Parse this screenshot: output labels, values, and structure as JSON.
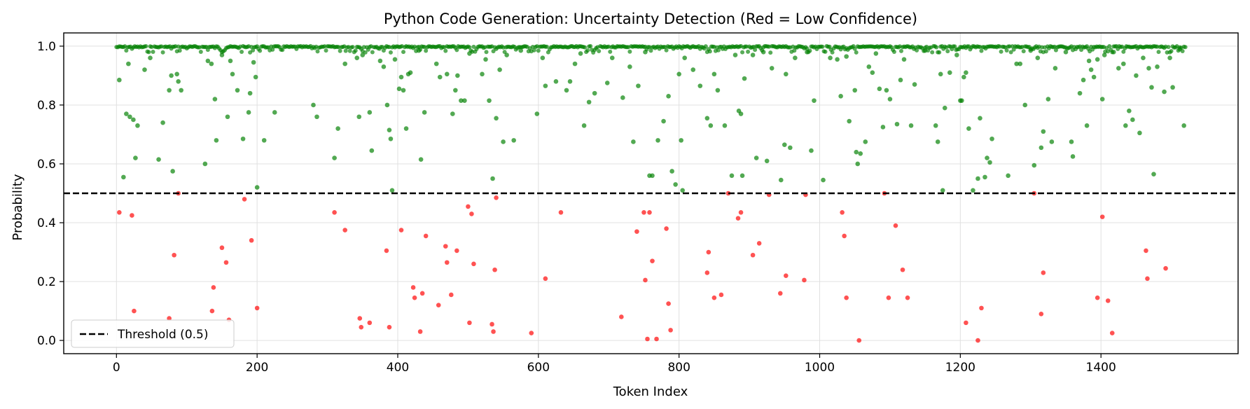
{
  "chart_data": {
    "type": "scatter",
    "title": "Python Code Generation: Uncertainty Detection (Red = Low Confidence)",
    "xlabel": "Token Index",
    "ylabel": "Probability",
    "xlim": [
      -75,
      1595
    ],
    "ylim": [
      -0.045,
      1.045
    ],
    "xticks": [
      0,
      200,
      400,
      600,
      800,
      1000,
      1200,
      1400
    ],
    "yticks": [
      0.0,
      0.2,
      0.4,
      0.6,
      0.8,
      1.0
    ],
    "grid": true,
    "threshold": {
      "value": 0.5,
      "label": "Threshold (0.5)",
      "style": "dashed",
      "color": "#000000"
    },
    "legend": {
      "placement": "lower-left",
      "entries": [
        "Threshold (0.5)"
      ]
    },
    "colors": {
      "high_confidence": "#008000",
      "low_confidence": "#ff0000"
    },
    "token_count": 1521,
    "series": [
      {
        "color": "#008000",
        "points": [
          [
            4,
            0.885
          ],
          [
            10,
            0.555
          ],
          [
            14,
            0.77
          ],
          [
            17,
            0.94
          ],
          [
            19,
            0.76
          ],
          [
            24,
            0.75
          ],
          [
            27,
            0.62
          ],
          [
            30,
            0.73
          ],
          [
            40,
            0.92
          ],
          [
            48,
            0.96
          ],
          [
            60,
            0.615
          ],
          [
            66,
            0.74
          ],
          [
            75,
            0.85
          ],
          [
            78,
            0.9
          ],
          [
            80,
            0.575
          ],
          [
            86,
            0.905
          ],
          [
            88,
            0.88
          ],
          [
            92,
            0.85
          ],
          [
            126,
            0.6
          ],
          [
            130,
            0.95
          ],
          [
            135,
            0.94
          ],
          [
            140,
            0.82
          ],
          [
            142,
            0.68
          ],
          [
            150,
            0.97
          ],
          [
            158,
            0.76
          ],
          [
            162,
            0.95
          ],
          [
            165,
            0.905
          ],
          [
            172,
            0.85
          ],
          [
            180,
            0.685
          ],
          [
            188,
            0.775
          ],
          [
            190,
            0.84
          ],
          [
            195,
            0.945
          ],
          [
            198,
            0.895
          ],
          [
            200,
            0.52
          ],
          [
            210,
            0.68
          ],
          [
            225,
            0.775
          ],
          [
            280,
            0.8
          ],
          [
            285,
            0.76
          ],
          [
            310,
            0.62
          ],
          [
            315,
            0.72
          ],
          [
            325,
            0.94
          ],
          [
            342,
            0.96
          ],
          [
            345,
            0.76
          ],
          [
            350,
            0.97
          ],
          [
            360,
            0.775
          ],
          [
            363,
            0.645
          ],
          [
            375,
            0.95
          ],
          [
            380,
            0.93
          ],
          [
            385,
            0.8
          ],
          [
            388,
            0.715
          ],
          [
            390,
            0.685
          ],
          [
            392,
            0.51
          ],
          [
            396,
            0.955
          ],
          [
            402,
            0.855
          ],
          [
            405,
            0.895
          ],
          [
            408,
            0.85
          ],
          [
            412,
            0.72
          ],
          [
            415,
            0.905
          ],
          [
            418,
            0.91
          ],
          [
            430,
            0.985
          ],
          [
            433,
            0.615
          ],
          [
            438,
            0.775
          ],
          [
            455,
            0.94
          ],
          [
            460,
            0.895
          ],
          [
            470,
            0.905
          ],
          [
            478,
            0.77
          ],
          [
            482,
            0.85
          ],
          [
            485,
            0.9
          ],
          [
            490,
            0.815
          ],
          [
            495,
            0.815
          ],
          [
            502,
            0.975
          ],
          [
            520,
            0.905
          ],
          [
            525,
            0.955
          ],
          [
            530,
            0.815
          ],
          [
            535,
            0.55
          ],
          [
            540,
            0.755
          ],
          [
            545,
            0.92
          ],
          [
            550,
            0.675
          ],
          [
            555,
            0.97
          ],
          [
            565,
            0.68
          ],
          [
            575,
            0.985
          ],
          [
            598,
            0.77
          ],
          [
            606,
            0.96
          ],
          [
            610,
            0.865
          ],
          [
            625,
            0.88
          ],
          [
            640,
            0.85
          ],
          [
            645,
            0.88
          ],
          [
            652,
            0.94
          ],
          [
            660,
            0.975
          ],
          [
            665,
            0.73
          ],
          [
            672,
            0.81
          ],
          [
            680,
            0.84
          ],
          [
            698,
            0.875
          ],
          [
            705,
            0.96
          ],
          [
            720,
            0.825
          ],
          [
            730,
            0.93
          ],
          [
            735,
            0.675
          ],
          [
            742,
            0.865
          ],
          [
            752,
            0.98
          ],
          [
            758,
            0.56
          ],
          [
            762,
            0.56
          ],
          [
            770,
            0.68
          ],
          [
            778,
            0.745
          ],
          [
            785,
            0.83
          ],
          [
            790,
            0.575
          ],
          [
            795,
            0.53
          ],
          [
            800,
            0.905
          ],
          [
            803,
            0.68
          ],
          [
            805,
            0.51
          ],
          [
            808,
            0.96
          ],
          [
            820,
            0.92
          ],
          [
            830,
            0.865
          ],
          [
            840,
            0.755
          ],
          [
            845,
            0.73
          ],
          [
            850,
            0.905
          ],
          [
            855,
            0.85
          ],
          [
            865,
            0.73
          ],
          [
            875,
            0.56
          ],
          [
            880,
            0.97
          ],
          [
            885,
            0.78
          ],
          [
            888,
            0.77
          ],
          [
            890,
            0.56
          ],
          [
            893,
            0.89
          ],
          [
            905,
            0.97
          ],
          [
            910,
            0.62
          ],
          [
            920,
            0.98
          ],
          [
            925,
            0.61
          ],
          [
            932,
            0.925
          ],
          [
            945,
            0.545
          ],
          [
            950,
            0.665
          ],
          [
            952,
            0.905
          ],
          [
            958,
            0.655
          ],
          [
            965,
            0.96
          ],
          [
            982,
            0.98
          ],
          [
            988,
            0.645
          ],
          [
            992,
            0.815
          ],
          [
            1005,
            0.545
          ],
          [
            1015,
            0.96
          ],
          [
            1025,
            0.955
          ],
          [
            1030,
            0.83
          ],
          [
            1038,
            0.965
          ],
          [
            1042,
            0.745
          ],
          [
            1050,
            0.85
          ],
          [
            1052,
            0.64
          ],
          [
            1054,
            0.6
          ],
          [
            1058,
            0.635
          ],
          [
            1065,
            0.675
          ],
          [
            1070,
            0.93
          ],
          [
            1075,
            0.91
          ],
          [
            1080,
            0.975
          ],
          [
            1085,
            0.855
          ],
          [
            1090,
            0.725
          ],
          [
            1095,
            0.85
          ],
          [
            1100,
            0.82
          ],
          [
            1110,
            0.735
          ],
          [
            1115,
            0.885
          ],
          [
            1120,
            0.955
          ],
          [
            1130,
            0.73
          ],
          [
            1135,
            0.87
          ],
          [
            1150,
            0.985
          ],
          [
            1165,
            0.73
          ],
          [
            1168,
            0.675
          ],
          [
            1172,
            0.905
          ],
          [
            1175,
            0.51
          ],
          [
            1178,
            0.79
          ],
          [
            1185,
            0.91
          ],
          [
            1195,
            0.97
          ],
          [
            1200,
            0.815
          ],
          [
            1202,
            0.815
          ],
          [
            1205,
            0.895
          ],
          [
            1208,
            0.91
          ],
          [
            1212,
            0.72
          ],
          [
            1218,
            0.51
          ],
          [
            1225,
            0.55
          ],
          [
            1228,
            0.755
          ],
          [
            1235,
            0.555
          ],
          [
            1238,
            0.62
          ],
          [
            1242,
            0.605
          ],
          [
            1245,
            0.685
          ],
          [
            1268,
            0.56
          ],
          [
            1280,
            0.94
          ],
          [
            1285,
            0.94
          ],
          [
            1292,
            0.8
          ],
          [
            1300,
            0.985
          ],
          [
            1305,
            0.595
          ],
          [
            1310,
            0.96
          ],
          [
            1315,
            0.655
          ],
          [
            1318,
            0.71
          ],
          [
            1325,
            0.82
          ],
          [
            1330,
            0.675
          ],
          [
            1335,
            0.925
          ],
          [
            1350,
            0.98
          ],
          [
            1358,
            0.675
          ],
          [
            1360,
            0.625
          ],
          [
            1370,
            0.84
          ],
          [
            1375,
            0.885
          ],
          [
            1380,
            0.73
          ],
          [
            1383,
            0.95
          ],
          [
            1386,
            0.92
          ],
          [
            1390,
            0.895
          ],
          [
            1395,
            0.955
          ],
          [
            1402,
            0.82
          ],
          [
            1405,
            0.97
          ],
          [
            1418,
            0.98
          ],
          [
            1425,
            0.925
          ],
          [
            1432,
            0.94
          ],
          [
            1435,
            0.73
          ],
          [
            1440,
            0.78
          ],
          [
            1445,
            0.75
          ],
          [
            1450,
            0.9
          ],
          [
            1455,
            0.705
          ],
          [
            1460,
            0.96
          ],
          [
            1468,
            0.925
          ],
          [
            1472,
            0.86
          ],
          [
            1475,
            0.565
          ],
          [
            1480,
            0.93
          ],
          [
            1490,
            0.845
          ],
          [
            1498,
            0.96
          ],
          [
            1502,
            0.86
          ],
          [
            1512,
            0.99
          ],
          [
            1518,
            0.73
          ]
        ]
      },
      {
        "color": "#ff0000",
        "points": [
          [
            4,
            0.435
          ],
          [
            22,
            0.425
          ],
          [
            25,
            0.1
          ],
          [
            75,
            0.075
          ],
          [
            82,
            0.29
          ],
          [
            88,
            0.5
          ],
          [
            136,
            0.1
          ],
          [
            138,
            0.18
          ],
          [
            150,
            0.315
          ],
          [
            156,
            0.265
          ],
          [
            160,
            0.07
          ],
          [
            182,
            0.48
          ],
          [
            192,
            0.34
          ],
          [
            200,
            0.11
          ],
          [
            310,
            0.435
          ],
          [
            325,
            0.375
          ],
          [
            346,
            0.075
          ],
          [
            348,
            0.045
          ],
          [
            360,
            0.06
          ],
          [
            384,
            0.305
          ],
          [
            388,
            0.045
          ],
          [
            405,
            0.375
          ],
          [
            422,
            0.18
          ],
          [
            424,
            0.145
          ],
          [
            432,
            0.03
          ],
          [
            435,
            0.16
          ],
          [
            440,
            0.355
          ],
          [
            458,
            0.12
          ],
          [
            468,
            0.32
          ],
          [
            470,
            0.265
          ],
          [
            476,
            0.155
          ],
          [
            484,
            0.305
          ],
          [
            500,
            0.455
          ],
          [
            502,
            0.06
          ],
          [
            505,
            0.43
          ],
          [
            508,
            0.26
          ],
          [
            534,
            0.055
          ],
          [
            536,
            0.03
          ],
          [
            538,
            0.24
          ],
          [
            540,
            0.485
          ],
          [
            590,
            0.025
          ],
          [
            610,
            0.21
          ],
          [
            632,
            0.435
          ],
          [
            718,
            0.08
          ],
          [
            740,
            0.37
          ],
          [
            750,
            0.435
          ],
          [
            752,
            0.205
          ],
          [
            755,
            0.005
          ],
          [
            758,
            0.435
          ],
          [
            762,
            0.27
          ],
          [
            768,
            0.005
          ],
          [
            782,
            0.38
          ],
          [
            785,
            0.125
          ],
          [
            788,
            0.035
          ],
          [
            840,
            0.23
          ],
          [
            842,
            0.3
          ],
          [
            850,
            0.145
          ],
          [
            860,
            0.155
          ],
          [
            870,
            0.5
          ],
          [
            884,
            0.415
          ],
          [
            888,
            0.435
          ],
          [
            905,
            0.29
          ],
          [
            914,
            0.33
          ],
          [
            928,
            0.495
          ],
          [
            944,
            0.16
          ],
          [
            952,
            0.22
          ],
          [
            978,
            0.205
          ],
          [
            980,
            0.495
          ],
          [
            1032,
            0.435
          ],
          [
            1035,
            0.355
          ],
          [
            1038,
            0.145
          ],
          [
            1056,
            0.0
          ],
          [
            1092,
            0.5
          ],
          [
            1098,
            0.145
          ],
          [
            1108,
            0.39
          ],
          [
            1118,
            0.24
          ],
          [
            1125,
            0.145
          ],
          [
            1208,
            0.06
          ],
          [
            1225,
            0.0
          ],
          [
            1230,
            0.11
          ],
          [
            1305,
            0.5
          ],
          [
            1315,
            0.09
          ],
          [
            1318,
            0.23
          ],
          [
            1395,
            0.145
          ],
          [
            1402,
            0.42
          ],
          [
            1410,
            0.135
          ],
          [
            1416,
            0.025
          ],
          [
            1464,
            0.305
          ],
          [
            1466,
            0.21
          ],
          [
            1492,
            0.245
          ]
        ]
      }
    ]
  }
}
